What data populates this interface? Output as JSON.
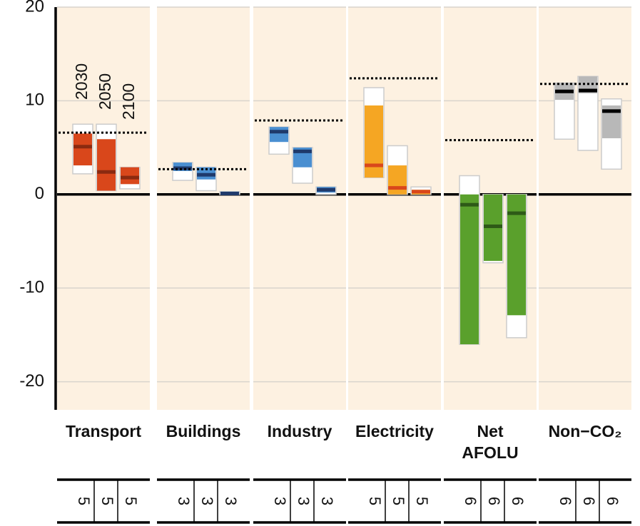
{
  "chart_data": {
    "type": "range_bar",
    "ylim": [
      -23,
      20
    ],
    "yticks": [
      -20,
      -10,
      0,
      10,
      20
    ],
    "years": [
      "2030",
      "2050",
      "2100"
    ],
    "categories": [
      "Transport",
      "Buildings",
      "Industry",
      "Electricity",
      "Net\nAFOLU",
      "Non−CO₂"
    ],
    "panels": [
      {
        "color": "#d9471b",
        "median_color": "#8b2a10",
        "reference": 6.6,
        "bars": [
          {
            "min": 2.2,
            "max": 7.5,
            "q1": 3.1,
            "q3": 6.5,
            "median": 5.1,
            "count": 5
          },
          {
            "min": 0.4,
            "max": 7.5,
            "q1": 0.4,
            "q3": 5.9,
            "median": 2.4,
            "count": 5
          },
          {
            "min": 0.6,
            "max": 2.9,
            "q1": 1.1,
            "q3": 2.9,
            "median": 1.8,
            "count": 5
          }
        ]
      },
      {
        "color": "#4a8fd1",
        "median_color": "#1f3a6b",
        "reference": 2.7,
        "bars": [
          {
            "min": 1.5,
            "max": 3.4,
            "q1": 2.5,
            "q3": 3.4,
            "median": 2.8,
            "count": 3
          },
          {
            "min": 0.4,
            "max": 2.9,
            "q1": 1.6,
            "q3": 2.9,
            "median": 2.1,
            "count": 3
          },
          {
            "min": 0,
            "max": 0.3,
            "q1": 0,
            "q3": 0.3,
            "median": 0.1,
            "count": 3
          }
        ]
      },
      {
        "color": "#4a8fd1",
        "median_color": "#1f3a6b",
        "reference": 7.9,
        "bars": [
          {
            "min": 4.3,
            "max": 7.2,
            "q1": 5.6,
            "q3": 7.2,
            "median": 6.7,
            "count": 3
          },
          {
            "min": 1.2,
            "max": 5.0,
            "q1": 2.9,
            "q3": 5.0,
            "median": 4.6,
            "count": 3
          },
          {
            "min": 0,
            "max": 0.8,
            "q1": 0.2,
            "q3": 0.8,
            "median": 0.5,
            "count": 3
          }
        ]
      },
      {
        "color": "#f5a623",
        "median_color": "#d9471b",
        "reference": 12.4,
        "bars": [
          {
            "min": 1.8,
            "max": 11.4,
            "q1": 1.8,
            "q3": 9.5,
            "median": 3.1,
            "count": 5
          },
          {
            "min": 0,
            "max": 5.2,
            "q1": 0,
            "q3": 3.1,
            "median": 0.7,
            "count": 5
          },
          {
            "min": 0,
            "max": 0.8,
            "q1": 0,
            "q3": 0.5,
            "median": 0.3,
            "count": 5
          }
        ]
      },
      {
        "color": "#5aa02c",
        "median_color": "#2e5a17",
        "reference": 5.8,
        "bars": [
          {
            "min": -16.0,
            "max": 2.0,
            "q1": -16.0,
            "q3": 0,
            "median": -1.1,
            "count": 6
          },
          {
            "min": -7.3,
            "max": 0,
            "q1": -7.1,
            "q3": 0,
            "median": -3.4,
            "count": 6
          },
          {
            "min": -15.3,
            "max": 0,
            "q1": -12.9,
            "q3": 0,
            "median": -2.0,
            "count": 6
          }
        ]
      },
      {
        "color": "#b8b8b8",
        "median_color": "#000000",
        "reference": 11.8,
        "bars": [
          {
            "min": 5.9,
            "max": 11.9,
            "q1": 10.1,
            "q3": 11.9,
            "median": 11.0,
            "count": 6
          },
          {
            "min": 4.7,
            "max": 12.6,
            "q1": 10.8,
            "q3": 12.6,
            "median": 11.1,
            "count": 6
          },
          {
            "min": 2.7,
            "max": 10.2,
            "q1": 6.0,
            "q3": 9.5,
            "median": 8.9,
            "count": 6
          }
        ]
      }
    ]
  }
}
